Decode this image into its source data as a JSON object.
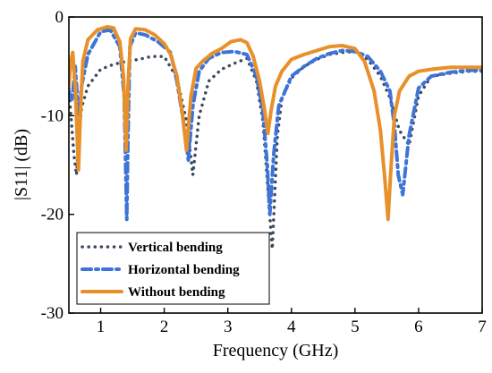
{
  "chart_data": {
    "type": "line",
    "xlabel": "Frequency (GHz)",
    "ylabel": "|S11| (dB)",
    "xlim": [
      0.5,
      7
    ],
    "ylim": [
      -30,
      0
    ],
    "xticks": [
      1,
      2,
      3,
      4,
      5,
      6,
      7
    ],
    "yticks": [
      0,
      -10,
      -20,
      -30
    ],
    "grid": false,
    "legend_position": "bottom-left",
    "series": [
      {
        "name": "Vertical bending",
        "color": "#3b4a5c",
        "style": "dotted",
        "x": [
          0.5,
          0.58,
          0.62,
          0.66,
          0.7,
          0.8,
          1.0,
          1.2,
          1.4,
          1.6,
          1.8,
          2.0,
          2.2,
          2.35,
          2.45,
          2.55,
          2.7,
          2.9,
          3.1,
          3.3,
          3.45,
          3.55,
          3.62,
          3.67,
          3.7,
          3.73,
          3.78,
          3.85,
          4.0,
          4.2,
          4.4,
          4.6,
          4.8,
          5.0,
          5.2,
          5.4,
          5.55,
          5.7,
          5.85,
          6.0,
          6.2,
          6.5,
          6.8,
          7.0
        ],
        "y": [
          -7.2,
          -14,
          -16,
          -12,
          -9.2,
          -7,
          -5.3,
          -4.8,
          -4.5,
          -4.3,
          -4.0,
          -4.0,
          -6.2,
          -10.5,
          -16,
          -10,
          -6.5,
          -5.3,
          -4.7,
          -4.2,
          -6.5,
          -10.5,
          -16.5,
          -21,
          -23.5,
          -19,
          -12,
          -8.3,
          -6.2,
          -5.0,
          -4.3,
          -3.8,
          -3.6,
          -3.5,
          -4.3,
          -6,
          -8.2,
          -11.5,
          -13,
          -8,
          -6,
          -5.7,
          -5.5,
          -5.5
        ]
      },
      {
        "name": "Horizontal bending",
        "color": "#3e74d8",
        "style": "dashdot",
        "x": [
          0.5,
          0.55,
          0.6,
          0.65,
          0.7,
          0.8,
          1.0,
          1.15,
          1.3,
          1.37,
          1.41,
          1.43,
          1.46,
          1.55,
          1.7,
          1.9,
          2.1,
          2.2,
          2.3,
          2.38,
          2.45,
          2.55,
          2.7,
          2.9,
          3.1,
          3.3,
          3.45,
          3.55,
          3.62,
          3.66,
          3.72,
          3.8,
          4.0,
          4.2,
          4.4,
          4.6,
          4.8,
          5.0,
          5.2,
          5.4,
          5.55,
          5.62,
          5.68,
          5.75,
          5.85,
          6.0,
          6.2,
          6.5,
          6.8,
          7.0
        ],
        "y": [
          -7.5,
          -8.5,
          -5,
          -10,
          -7,
          -3.8,
          -1.5,
          -1.3,
          -3,
          -8,
          -20.5,
          -12,
          -3,
          -1.6,
          -1.8,
          -2.5,
          -3.6,
          -6.5,
          -10.5,
          -14.5,
          -9,
          -5.5,
          -4.2,
          -3.6,
          -3.5,
          -3.8,
          -6,
          -9.5,
          -15,
          -20,
          -14,
          -9,
          -6,
          -5,
          -4.2,
          -3.7,
          -3.4,
          -3.5,
          -4,
          -5.5,
          -7.5,
          -11,
          -16,
          -18,
          -12,
          -7.2,
          -6,
          -5.6,
          -5.4,
          -5.4
        ]
      },
      {
        "name": "Without bending",
        "color": "#e8902a",
        "style": "solid",
        "x": [
          0.5,
          0.53,
          0.56,
          0.6,
          0.65,
          0.68,
          0.72,
          0.8,
          0.95,
          1.1,
          1.2,
          1.3,
          1.36,
          1.4,
          1.43,
          1.47,
          1.55,
          1.7,
          1.85,
          2.0,
          2.1,
          2.2,
          2.28,
          2.35,
          2.42,
          2.5,
          2.6,
          2.75,
          2.9,
          3.05,
          3.2,
          3.3,
          3.4,
          3.5,
          3.58,
          3.63,
          3.68,
          3.75,
          3.85,
          4.0,
          4.2,
          4.4,
          4.6,
          4.8,
          5.0,
          5.15,
          5.3,
          5.4,
          5.47,
          5.52,
          5.56,
          5.62,
          5.7,
          5.85,
          6.0,
          6.2,
          6.5,
          6.8,
          7.0
        ],
        "y": [
          -7,
          -4.5,
          -3.6,
          -7,
          -15.5,
          -10,
          -4.5,
          -2.3,
          -1.3,
          -1.0,
          -1.1,
          -2.5,
          -6,
          -13.5,
          -7,
          -2.2,
          -1.2,
          -1.3,
          -1.8,
          -2.7,
          -3.8,
          -6,
          -9.5,
          -13.5,
          -8,
          -5.2,
          -4.5,
          -3.7,
          -3.2,
          -2.5,
          -2.3,
          -2.6,
          -4,
          -6.5,
          -9.5,
          -11.8,
          -9.5,
          -7,
          -5.5,
          -4.3,
          -3.8,
          -3.4,
          -3.0,
          -2.9,
          -3.2,
          -4.5,
          -7.5,
          -11.5,
          -16.5,
          -20.5,
          -16,
          -10,
          -7.5,
          -6,
          -5.5,
          -5.3,
          -5.1,
          -5.1,
          -5.1
        ]
      }
    ]
  }
}
